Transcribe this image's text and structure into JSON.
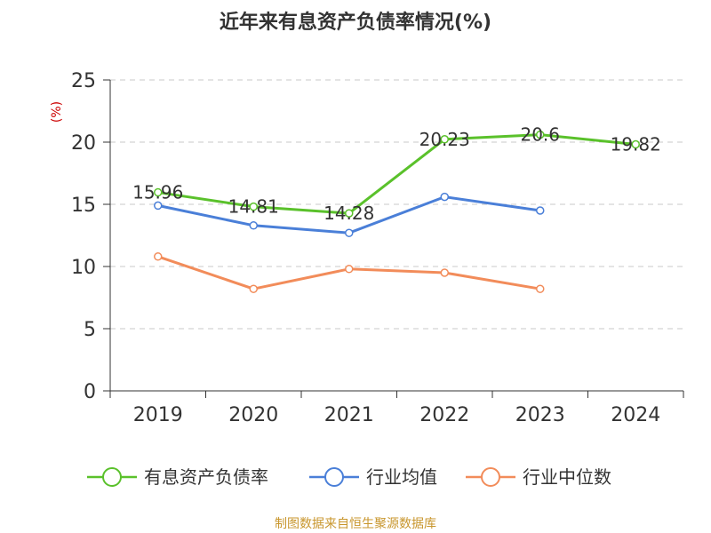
{
  "chart_data": {
    "type": "line",
    "title": "近年来有息资产负债率情况(%)",
    "ylabel": "(%)",
    "xlabel": "",
    "categories": [
      "2019",
      "2020",
      "2021",
      "2022",
      "2023",
      "2024"
    ],
    "ylim": [
      0,
      25
    ],
    "yticks": [
      0,
      5,
      10,
      15,
      20,
      25
    ],
    "grid": true,
    "legend_position": "bottom",
    "series": [
      {
        "name": "有息资产负债率",
        "color": "#5ac12b",
        "values": [
          15.96,
          14.81,
          14.28,
          20.23,
          20.6,
          19.82
        ],
        "labels": [
          "15.96",
          "14.81",
          "14.28",
          "20.23",
          "20.6",
          "19.82"
        ]
      },
      {
        "name": "行业均值",
        "color": "#4a7fd8",
        "values": [
          14.9,
          13.3,
          12.7,
          15.6,
          14.5,
          null
        ]
      },
      {
        "name": "行业中位数",
        "color": "#f28c5a",
        "values": [
          10.8,
          8.2,
          9.8,
          9.5,
          8.2,
          null
        ]
      }
    ],
    "source": "制图数据来自恒生聚源数据库"
  }
}
